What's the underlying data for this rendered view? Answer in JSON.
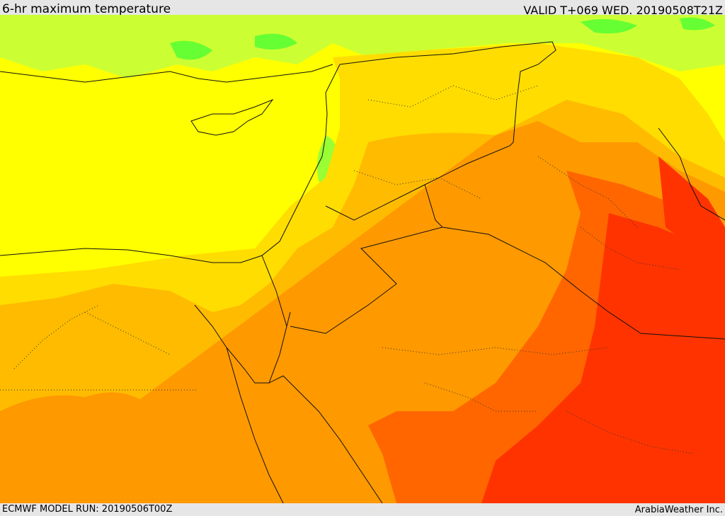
{
  "header": {
    "title": "6-hr maximum temperature",
    "valid": "VALID T+069 WED. 20190508T21Z"
  },
  "footer": {
    "model_run": "ECMWF MODEL RUN: 20190506T00Z",
    "credit": "ArabiaWeather Inc."
  },
  "map": {
    "variable": "6-hr maximum temperature",
    "colors": {
      "green": "#66ff33",
      "lime": "#ccff33",
      "yellow": "#ffff00",
      "gold": "#ffdd00",
      "amber": "#ffbb00",
      "orange": "#ff9900",
      "dark_orange": "#ff6600",
      "red": "#ff3300",
      "border": "#111111"
    }
  }
}
